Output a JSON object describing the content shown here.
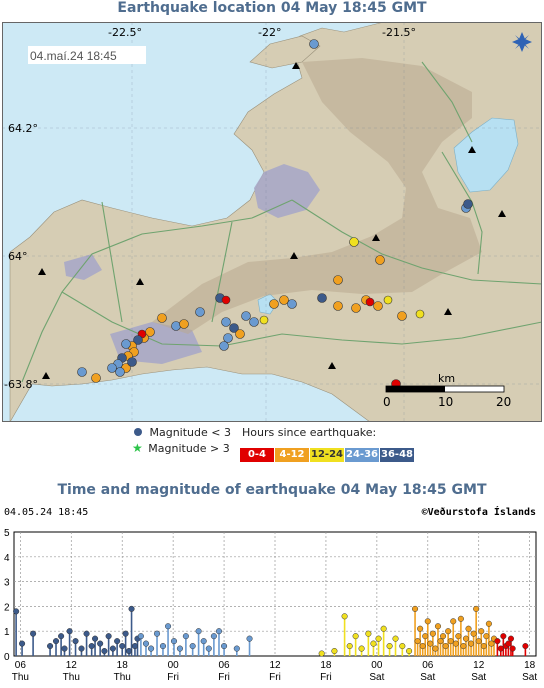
{
  "map": {
    "title": "Earthquake location   04 May 18:45 GMT",
    "date_stamp": "04.maí.24   18:45",
    "lon_labels": [
      "-22.5°",
      "-22°",
      "-21.5°"
    ],
    "lat_labels": [
      "64.2°",
      "64°",
      "-63.8°"
    ],
    "scale": {
      "unit": "km",
      "ticks": [
        "0",
        "10",
        "20"
      ]
    },
    "colors": {
      "sea": "#cde9f5",
      "land": "#d6cdb4",
      "lava": "#a9a9c6",
      "lake": "#b7e0f2"
    }
  },
  "legend": {
    "magnitude_small": "Magnitude < 3",
    "magnitude_large": "Magnitude > 3",
    "hours_title": "Hours since earthquake:",
    "hours": [
      {
        "label": "0-4",
        "color": "#e00000"
      },
      {
        "label": "4-12",
        "color": "#f0a020"
      },
      {
        "label": "12-24",
        "color": "#f0e020"
      },
      {
        "label": "24-36",
        "color": "#6a9ad0"
      },
      {
        "label": "36-48",
        "color": "#3c5a8a"
      }
    ]
  },
  "chart": {
    "title": "Time and magnitude of earthquake   04 May 18:45 GMT",
    "timestamp": "04.05.24 18:45",
    "credit": "©Veðurstofa Íslands"
  },
  "chart_data": {
    "type": "scatter",
    "title": "Time and magnitude of earthquake   04 May 18:45 GMT",
    "xlabel": "",
    "ylabel": "",
    "ylim": [
      0,
      5
    ],
    "yticks": [
      0,
      1,
      2,
      3,
      4,
      5
    ],
    "x_unit": "hours since 03.05 00:00",
    "xlim": [
      -18.75,
      42.75
    ],
    "xticks": [
      {
        "h": -18,
        "top": "06",
        "bottom": "Thu"
      },
      {
        "h": -12,
        "top": "12",
        "bottom": "Thu"
      },
      {
        "h": -6,
        "top": "18",
        "bottom": "Thu"
      },
      {
        "h": 0,
        "top": "00",
        "bottom": "Fri"
      },
      {
        "h": 6,
        "top": "06",
        "bottom": "Fri"
      },
      {
        "h": 12,
        "top": "12",
        "bottom": "Fri"
      },
      {
        "h": 18,
        "top": "18",
        "bottom": "Fri"
      },
      {
        "h": 24,
        "top": "00",
        "bottom": "Sat"
      },
      {
        "h": 30,
        "top": "06",
        "bottom": "Sat"
      },
      {
        "h": 36,
        "top": "12",
        "bottom": "Sat"
      },
      {
        "h": 42,
        "top": "18",
        "bottom": "Sat"
      }
    ],
    "series": [
      {
        "color": "#3c5a8a",
        "points": [
          [
            -18.5,
            1.8
          ],
          [
            -17.8,
            0.5
          ],
          [
            -16.5,
            0.9
          ],
          [
            -14.5,
            0.4
          ],
          [
            -13.8,
            0.6
          ],
          [
            -13.2,
            0.8
          ],
          [
            -12.8,
            0.3
          ],
          [
            -12.2,
            1.0
          ],
          [
            -11.5,
            0.6
          ],
          [
            -10.8,
            0.3
          ],
          [
            -10.2,
            0.9
          ],
          [
            -9.6,
            0.4
          ],
          [
            -9.2,
            0.7
          ],
          [
            -8.6,
            0.5
          ],
          [
            -8.1,
            0.2
          ],
          [
            -7.6,
            0.8
          ],
          [
            -7.1,
            0.3
          ],
          [
            -6.6,
            0.6
          ],
          [
            -6.0,
            0.4
          ],
          [
            -5.6,
            0.9
          ],
          [
            -5.2,
            0.2
          ],
          [
            -4.9,
            1.9
          ],
          [
            -4.5,
            0.4
          ],
          [
            -4.2,
            0.7
          ]
        ]
      },
      {
        "color": "#6a9ad0",
        "points": [
          [
            -3.8,
            0.8
          ],
          [
            -3.2,
            0.5
          ],
          [
            -2.6,
            0.3
          ],
          [
            -1.9,
            0.9
          ],
          [
            -1.2,
            0.4
          ],
          [
            -0.6,
            1.2
          ],
          [
            0.1,
            0.6
          ],
          [
            0.8,
            0.3
          ],
          [
            1.5,
            0.8
          ],
          [
            2.3,
            0.4
          ],
          [
            3.0,
            1.0
          ],
          [
            3.6,
            0.6
          ],
          [
            4.2,
            0.3
          ],
          [
            4.8,
            0.8
          ],
          [
            5.4,
            1.0
          ],
          [
            6.0,
            0.4
          ],
          [
            7.5,
            0.3
          ],
          [
            9.0,
            0.7
          ]
        ]
      },
      {
        "color": "#f0e020",
        "points": [
          [
            17.5,
            0.1
          ],
          [
            19.0,
            0.2
          ],
          [
            20.2,
            1.6
          ],
          [
            20.8,
            0.4
          ],
          [
            21.5,
            0.8
          ],
          [
            22.2,
            0.3
          ],
          [
            23.0,
            0.9
          ],
          [
            23.6,
            0.5
          ],
          [
            24.2,
            0.7
          ],
          [
            24.8,
            1.1
          ],
          [
            25.5,
            0.4
          ],
          [
            26.2,
            0.7
          ],
          [
            27.0,
            0.4
          ],
          [
            27.8,
            0.2
          ]
        ]
      },
      {
        "color": "#f0a020",
        "points": [
          [
            28.5,
            1.9
          ],
          [
            28.8,
            0.6
          ],
          [
            29.1,
            1.1
          ],
          [
            29.4,
            0.4
          ],
          [
            29.7,
            0.8
          ],
          [
            30.0,
            1.4
          ],
          [
            30.3,
            0.5
          ],
          [
            30.6,
            0.9
          ],
          [
            30.9,
            0.3
          ],
          [
            31.2,
            1.2
          ],
          [
            31.5,
            0.6
          ],
          [
            31.8,
            0.8
          ],
          [
            32.1,
            0.4
          ],
          [
            32.4,
            1.0
          ],
          [
            32.7,
            0.6
          ],
          [
            33.0,
            1.4
          ],
          [
            33.3,
            0.5
          ],
          [
            33.6,
            0.8
          ],
          [
            33.9,
            1.5
          ],
          [
            34.2,
            0.4
          ],
          [
            34.5,
            0.7
          ],
          [
            34.8,
            1.1
          ],
          [
            35.1,
            0.5
          ],
          [
            35.4,
            0.9
          ],
          [
            35.7,
            1.9
          ],
          [
            36.0,
            0.6
          ],
          [
            36.3,
            1.0
          ],
          [
            36.6,
            0.4
          ],
          [
            36.9,
            0.8
          ],
          [
            37.2,
            1.3
          ],
          [
            37.5,
            0.5
          ],
          [
            37.8,
            0.7
          ]
        ]
      },
      {
        "color": "#e00000",
        "points": [
          [
            38.2,
            0.6
          ],
          [
            38.6,
            0.3
          ],
          [
            38.9,
            0.8
          ],
          [
            39.2,
            0.4
          ],
          [
            39.5,
            0.5
          ],
          [
            39.8,
            0.7
          ],
          [
            40.0,
            0.3
          ],
          [
            41.5,
            0.4
          ]
        ]
      }
    ]
  }
}
